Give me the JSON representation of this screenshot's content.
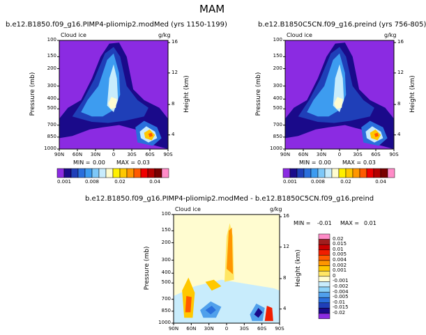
{
  "page": {
    "title": "MAM"
  },
  "chart_data": [
    {
      "type": "heatmap",
      "title": "b.e12.B1850.f09_g16.PIMP4-pliomip2.modMed (yrs 1150-1199)",
      "field": "Cloud ice",
      "units": "g/kg",
      "xlabel": "",
      "ylabel": "Pressure (mb)",
      "ylabel_right": "Height (km)",
      "x_ticks": [
        "90N",
        "60N",
        "30N",
        "0",
        "30S",
        "60S",
        "90S"
      ],
      "y_ticks": [
        "100",
        "150",
        "200",
        "300",
        "400",
        "500",
        "700",
        "850",
        "1000"
      ],
      "y_right_ticks": [
        "16",
        "12",
        "8",
        "4"
      ],
      "stats": {
        "min_label": "MIN =",
        "min": "0.00",
        "max_label": "MAX =",
        "max": "0.03"
      },
      "colorbar_levels": [
        0.001,
        0.002,
        0.004,
        0.006,
        0.008,
        0.01,
        0.012,
        0.015,
        0.02,
        0.025,
        0.03,
        0.035,
        0.04,
        0.045,
        0.05
      ],
      "colorbar_labels": [
        "0.001",
        "0.008",
        "0.02",
        "0.04"
      ],
      "colors": [
        "#8b2be2",
        "#1a0a8a",
        "#1f3fb8",
        "#2a6fdc",
        "#3d9cf0",
        "#7ec8f8",
        "#c8ecfc",
        "#fffcd0",
        "#fff000",
        "#ffc800",
        "#ff9600",
        "#ff5a00",
        "#f00000",
        "#b40000",
        "#780000",
        "#ff8cc8"
      ]
    },
    {
      "type": "heatmap",
      "title": "b.e12.B1850C5CN.f09_g16.preind (yrs 756-805)",
      "field": "Cloud ice",
      "units": "g/kg",
      "xlabel": "",
      "ylabel": "Pressure (mb)",
      "ylabel_right": "Height (km)",
      "x_ticks": [
        "90N",
        "60N",
        "30N",
        "0",
        "30S",
        "60S",
        "90S"
      ],
      "y_ticks": [
        "100",
        "150",
        "200",
        "300",
        "400",
        "500",
        "700",
        "850",
        "1000"
      ],
      "y_right_ticks": [
        "16",
        "12",
        "8",
        "4"
      ],
      "stats": {
        "min_label": "MIN =",
        "min": "0.00",
        "max_label": "MAX =",
        "max": "0.03"
      },
      "colorbar_labels": [
        "0.001",
        "0.008",
        "0.02",
        "0.04"
      ]
    },
    {
      "type": "heatmap",
      "title": "b.e12.B1850.f09_g16.PIMP4-pliomip2.modMed - b.e12.B1850C5CN.f09_g16.preind",
      "field": "Cloud ice",
      "units": "g/kg",
      "xlabel": "",
      "ylabel": "Pressure (mb)",
      "ylabel_right": "Height (km)",
      "x_ticks": [
        "90N",
        "60N",
        "30N",
        "0",
        "30S",
        "60S",
        "90S"
      ],
      "y_ticks": [
        "100",
        "150",
        "200",
        "300",
        "400",
        "500",
        "700",
        "850",
        "1000"
      ],
      "y_right_ticks": [
        "16",
        "12",
        "8",
        "4"
      ],
      "stats": {
        "min_label": "MIN =",
        "min": "-0.01",
        "max_label": "MAX =",
        "max": "0.01"
      },
      "colorbar_levels": [
        0.02,
        0.015,
        0.01,
        0.005,
        0.004,
        0.002,
        0.001,
        0,
        -0.001,
        -0.002,
        -0.004,
        -0.005,
        -0.01,
        -0.015,
        -0.02
      ],
      "colorbar_labels": [
        "0.02",
        "0.015",
        "0.01",
        "0.005",
        "0.004",
        "0.002",
        "0.001",
        "0",
        "-0.001",
        "-0.002",
        "-0.004",
        "-0.005",
        "-0.01",
        "-0.015",
        "-0.02"
      ],
      "colors": [
        "#ff8cc8",
        "#a01e1e",
        "#c80000",
        "#f01e00",
        "#ff5a00",
        "#ff9600",
        "#ffc800",
        "#ffe664",
        "#fffcd0",
        "#c8ecfc",
        "#8cd2f8",
        "#50a0ec",
        "#2a6fdc",
        "#1f3fb8",
        "#1a0a8a",
        "#8b2be2"
      ]
    }
  ]
}
